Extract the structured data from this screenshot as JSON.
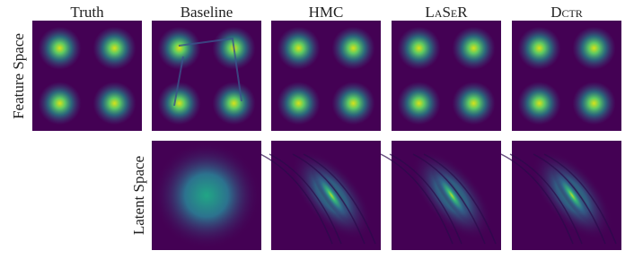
{
  "figure": {
    "columns": [
      "Truth",
      "Baseline",
      "HMC",
      "LaSeR",
      "Dctr"
    ],
    "rows": [
      "Feature Space",
      "Latent Space"
    ]
  }
}
